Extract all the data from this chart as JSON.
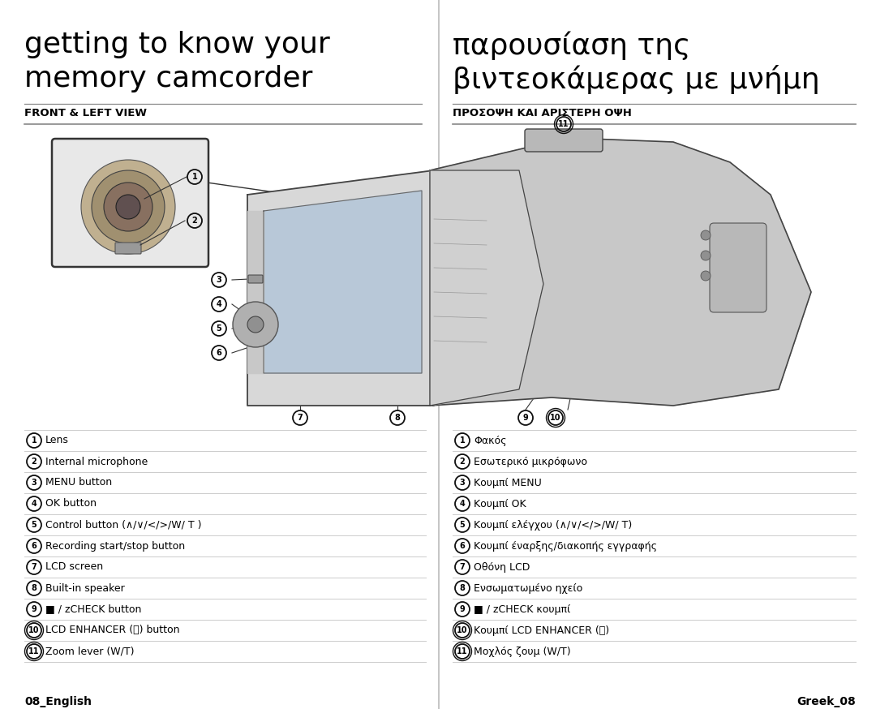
{
  "bg_color": "#ffffff",
  "title_left_line1": "getting to know your",
  "title_left_line2": "memory camcorder",
  "title_right_line1": "παρουσίαση της",
  "title_right_line2": "βιντεοκάμερας με μνήμη",
  "subtitle_left": "FRONT & LEFT VIEW",
  "subtitle_right": "ΠΡΟΣΟΨΗ ΚΑΙ ΑΡΙΣΤΕΡΗ ΟΨΗ",
  "footer_left": "08_English",
  "footer_right": "Greek_08",
  "items_left": [
    {
      "num": "1",
      "text": "Lens"
    },
    {
      "num": "2",
      "text": "Internal microphone"
    },
    {
      "num": "3",
      "text": "MENU button"
    },
    {
      "num": "4",
      "text": "OK button"
    },
    {
      "num": "5",
      "text": "Control button (∧/∨/</>/W/ T )"
    },
    {
      "num": "6",
      "text": "Recording start/stop button"
    },
    {
      "num": "7",
      "text": "LCD screen"
    },
    {
      "num": "8",
      "text": "Built-in speaker"
    },
    {
      "num": "9",
      "text": "■ / ᴢCHECK button"
    },
    {
      "num": "10",
      "text": "LCD ENHANCER (ⓡ) button"
    },
    {
      "num": "11",
      "text": "Zoom lever (W/T)"
    }
  ],
  "items_right": [
    {
      "num": "1",
      "text": "Φακός"
    },
    {
      "num": "2",
      "text": "Εσωτερικό μικρόφωνο"
    },
    {
      "num": "3",
      "text": "Κουμπί MENU"
    },
    {
      "num": "4",
      "text": "Κουμπί OK"
    },
    {
      "num": "5",
      "text": "Κουμπί ελέγχου (∧/∨/</>/W/ T)"
    },
    {
      "num": "6",
      "text": "Κουμπί έναρξης/διακοπής εγγραφής"
    },
    {
      "num": "7",
      "text": "Οθόνη LCD"
    },
    {
      "num": "8",
      "text": "Ενσωματωμένο ηχείο"
    },
    {
      "num": "9",
      "text": "■ / ᴢCHECK κουμπί"
    },
    {
      "num": "10",
      "text": "Κουμπί LCD ENHANCER (ⓡ)"
    },
    {
      "num": "11",
      "text": "Μοχλός ζουμ (W/T)"
    }
  ],
  "text_color": "#000000",
  "line_color_dark": "#888888",
  "line_color_light": "#cccccc",
  "divider_color": "#bbbbbb"
}
